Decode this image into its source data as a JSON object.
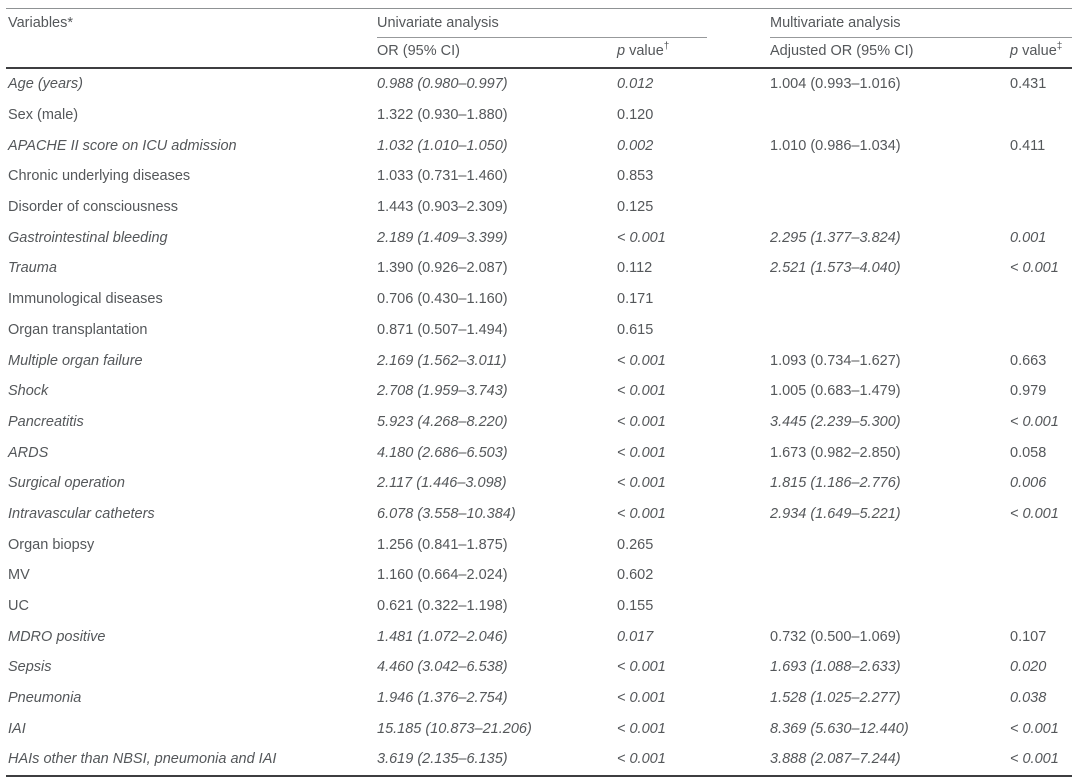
{
  "table": {
    "col1_header": "Variables*",
    "group_headers": {
      "univariate": "Univariate analysis",
      "multivariate": "Multivariate analysis"
    },
    "sub_headers": {
      "or": "OR (95% CI)",
      "adj_or": "Adjusted OR (95% CI)",
      "p_italic": "p",
      "p_rest": " value",
      "uni_sup": "†",
      "multi_sup": "‡"
    },
    "colors": {
      "text": "#54575a",
      "thin_rule": "#97999b",
      "thick_rule": "#3d3e40",
      "background": "#ffffff"
    },
    "rows": [
      {
        "v": "Age (years)",
        "vi": true,
        "or": "0.988 (0.980–0.997)",
        "ori": true,
        "p": "0.012",
        "pi": true,
        "aor": "1.004 (0.993–1.016)",
        "aori": false,
        "ap": "0.431",
        "api": false
      },
      {
        "v": "Sex (male)",
        "vi": false,
        "or": "1.322 (0.930–1.880)",
        "ori": false,
        "p": "0.120",
        "pi": false,
        "aor": "",
        "aori": false,
        "ap": "",
        "api": false
      },
      {
        "v": "APACHE II score on ICU admission",
        "vi": true,
        "or": "1.032 (1.010–1.050)",
        "ori": true,
        "p": "0.002",
        "pi": true,
        "aor": "1.010 (0.986–1.034)",
        "aori": false,
        "ap": "0.411",
        "api": false
      },
      {
        "v": "Chronic underlying diseases",
        "vi": false,
        "or": "1.033 (0.731–1.460)",
        "ori": false,
        "p": "0.853",
        "pi": false,
        "aor": "",
        "aori": false,
        "ap": "",
        "api": false
      },
      {
        "v": "Disorder of consciousness",
        "vi": false,
        "or": "1.443 (0.903–2.309)",
        "ori": false,
        "p": "0.125",
        "pi": false,
        "aor": "",
        "aori": false,
        "ap": "",
        "api": false
      },
      {
        "v": "Gastrointestinal bleeding",
        "vi": true,
        "or": "2.189 (1.409–3.399)",
        "ori": true,
        "p": "< 0.001",
        "pi": true,
        "aor": "2.295 (1.377–3.824)",
        "aori": true,
        "ap": "0.001",
        "api": true
      },
      {
        "v": "Trauma",
        "vi": true,
        "or": "1.390 (0.926–2.087)",
        "ori": false,
        "p": "0.112",
        "pi": false,
        "aor": "2.521 (1.573–4.040)",
        "aori": true,
        "ap": "< 0.001",
        "api": true
      },
      {
        "v": "Immunological diseases",
        "vi": false,
        "or": "0.706 (0.430–1.160)",
        "ori": false,
        "p": "0.171",
        "pi": false,
        "aor": "",
        "aori": false,
        "ap": "",
        "api": false
      },
      {
        "v": "Organ transplantation",
        "vi": false,
        "or": "0.871 (0.507–1.494)",
        "ori": false,
        "p": "0.615",
        "pi": false,
        "aor": "",
        "aori": false,
        "ap": "",
        "api": false
      },
      {
        "v": "Multiple organ failure",
        "vi": true,
        "or": "2.169 (1.562–3.011)",
        "ori": true,
        "p": "< 0.001",
        "pi": true,
        "aor": "1.093 (0.734–1.627)",
        "aori": false,
        "ap": "0.663",
        "api": false
      },
      {
        "v": "Shock",
        "vi": true,
        "or": "2.708 (1.959–3.743)",
        "ori": true,
        "p": "< 0.001",
        "pi": true,
        "aor": "1.005 (0.683–1.479)",
        "aori": false,
        "ap": "0.979",
        "api": false
      },
      {
        "v": "Pancreatitis",
        "vi": true,
        "or": "5.923 (4.268–8.220)",
        "ori": true,
        "p": "< 0.001",
        "pi": true,
        "aor": "3.445 (2.239–5.300)",
        "aori": true,
        "ap": "< 0.001",
        "api": true
      },
      {
        "v": "ARDS",
        "vi": true,
        "or": "4.180 (2.686–6.503)",
        "ori": true,
        "p": "< 0.001",
        "pi": true,
        "aor": "1.673 (0.982–2.850)",
        "aori": false,
        "ap": "0.058",
        "api": false
      },
      {
        "v": "Surgical operation",
        "vi": true,
        "or": "2.117 (1.446–3.098)",
        "ori": true,
        "p": "< 0.001",
        "pi": true,
        "aor": "1.815 (1.186–2.776)",
        "aori": true,
        "ap": "0.006",
        "api": true
      },
      {
        "v": "Intravascular catheters",
        "vi": true,
        "or": "6.078 (3.558–10.384)",
        "ori": true,
        "p": "< 0.001",
        "pi": true,
        "aor": "2.934 (1.649–5.221)",
        "aori": true,
        "ap": "< 0.001",
        "api": true
      },
      {
        "v": "Organ biopsy",
        "vi": false,
        "or": "1.256 (0.841–1.875)",
        "ori": false,
        "p": "0.265",
        "pi": false,
        "aor": "",
        "aori": false,
        "ap": "",
        "api": false
      },
      {
        "v": "MV",
        "vi": false,
        "or": "1.160 (0.664–2.024)",
        "ori": false,
        "p": "0.602",
        "pi": false,
        "aor": "",
        "aori": false,
        "ap": "",
        "api": false
      },
      {
        "v": "UC",
        "vi": false,
        "or": "0.621 (0.322–1.198)",
        "ori": false,
        "p": "0.155",
        "pi": false,
        "aor": "",
        "aori": false,
        "ap": "",
        "api": false
      },
      {
        "v": "MDRO positive",
        "vi": true,
        "or": "1.481 (1.072–2.046)",
        "ori": true,
        "p": "0.017",
        "pi": true,
        "aor": "0.732 (0.500–1.069)",
        "aori": false,
        "ap": "0.107",
        "api": false
      },
      {
        "v": "Sepsis",
        "vi": true,
        "or": "4.460 (3.042–6.538)",
        "ori": true,
        "p": "< 0.001",
        "pi": true,
        "aor": "1.693 (1.088–2.633)",
        "aori": true,
        "ap": "0.020",
        "api": true
      },
      {
        "v": "Pneumonia",
        "vi": true,
        "or": "1.946 (1.376–2.754)",
        "ori": true,
        "p": "< 0.001",
        "pi": true,
        "aor": "1.528 (1.025–2.277)",
        "aori": true,
        "ap": "0.038",
        "api": true
      },
      {
        "v": "IAI",
        "vi": true,
        "or": "15.185 (10.873–21.206)",
        "ori": true,
        "p": "< 0.001",
        "pi": true,
        "aor": "8.369 (5.630–12.440)",
        "aori": true,
        "ap": "< 0.001",
        "api": true
      },
      {
        "v": "HAIs other than NBSI, pneumonia and IAI",
        "vi": true,
        "or": "3.619 (2.135–6.135)",
        "ori": true,
        "p": "< 0.001",
        "pi": true,
        "aor": "3.888 (2.087–7.244)",
        "aori": true,
        "ap": "< 0.001",
        "api": true
      }
    ]
  }
}
